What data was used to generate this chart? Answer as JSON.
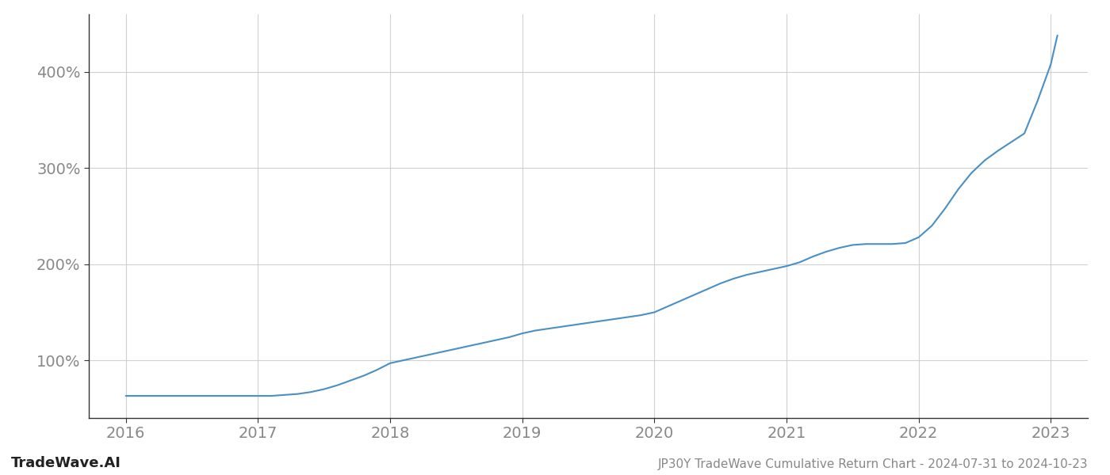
{
  "title": "JP30Y TradeWave Cumulative Return Chart - 2024-07-31 to 2024-10-23",
  "watermark_left": "TradeWave.AI",
  "line_color": "#4a90c4",
  "background_color": "#ffffff",
  "grid_color": "#cccccc",
  "tick_color": "#888888",
  "x_values": [
    2016.0,
    2016.1,
    2016.2,
    2016.3,
    2016.4,
    2016.5,
    2016.6,
    2016.7,
    2016.8,
    2016.9,
    2017.0,
    2017.1,
    2017.2,
    2017.3,
    2017.4,
    2017.5,
    2017.6,
    2017.7,
    2017.8,
    2017.9,
    2018.0,
    2018.1,
    2018.2,
    2018.3,
    2018.4,
    2018.5,
    2018.6,
    2018.7,
    2018.8,
    2018.9,
    2019.0,
    2019.1,
    2019.2,
    2019.3,
    2019.4,
    2019.5,
    2019.6,
    2019.7,
    2019.8,
    2019.9,
    2020.0,
    2020.1,
    2020.2,
    2020.3,
    2020.4,
    2020.5,
    2020.6,
    2020.7,
    2020.8,
    2020.9,
    2021.0,
    2021.1,
    2021.2,
    2021.3,
    2021.4,
    2021.5,
    2021.6,
    2021.7,
    2021.8,
    2021.9,
    2022.0,
    2022.1,
    2022.2,
    2022.3,
    2022.4,
    2022.5,
    2022.6,
    2022.7,
    2022.8,
    2022.9,
    2023.0,
    2023.05
  ],
  "y_values": [
    63,
    63,
    63,
    63,
    63,
    63,
    63,
    63,
    63,
    63,
    63,
    63,
    64,
    65,
    67,
    70,
    74,
    79,
    84,
    90,
    97,
    100,
    103,
    106,
    109,
    112,
    115,
    118,
    121,
    124,
    128,
    131,
    133,
    135,
    137,
    139,
    141,
    143,
    145,
    147,
    150,
    156,
    162,
    168,
    174,
    180,
    185,
    189,
    192,
    195,
    198,
    202,
    208,
    213,
    217,
    220,
    221,
    221,
    221,
    222,
    228,
    240,
    258,
    278,
    295,
    308,
    318,
    327,
    336,
    370,
    408,
    438
  ],
  "xlim": [
    2015.72,
    2023.28
  ],
  "ylim": [
    40,
    460
  ],
  "yticks": [
    100,
    200,
    300,
    400
  ],
  "xticks": [
    2016,
    2017,
    2018,
    2019,
    2020,
    2021,
    2022,
    2023
  ],
  "title_fontsize": 11,
  "tick_fontsize": 14,
  "watermark_fontsize": 13
}
